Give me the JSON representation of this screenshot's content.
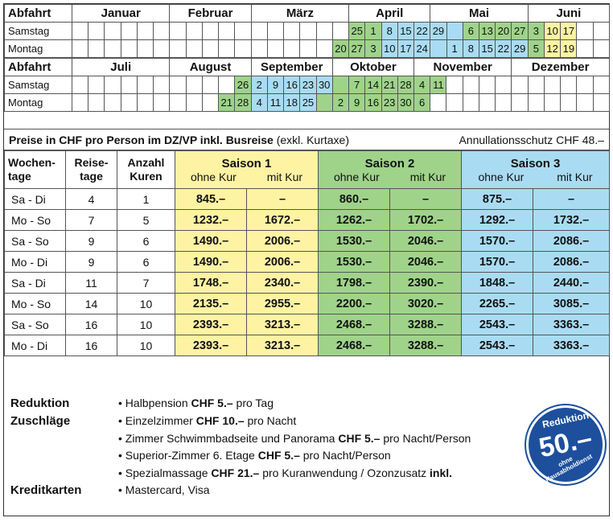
{
  "calendar1": {
    "head": "Abfahrt",
    "months": [
      "Januar",
      "Februar",
      "März",
      "April",
      "Mai",
      "Juni"
    ],
    "rows": [
      {
        "label": "Samstag",
        "cells": [
          "",
          "",
          "",
          "",
          "",
          "",
          "",
          "",
          "",
          "",
          "",
          "",
          "",
          "",
          "",
          "",
          "",
          "25",
          "1",
          "8",
          "15",
          "22",
          "29",
          "",
          "6",
          "13",
          "20",
          "27",
          "3",
          "10",
          "17",
          "",
          ""
        ]
      },
      {
        "label": "Montag",
        "cells": [
          "",
          "",
          "",
          "",
          "",
          "",
          "",
          "",
          "",
          "",
          "",
          "",
          "",
          "",
          "",
          "",
          "20",
          "27",
          "3",
          "10",
          "17",
          "24",
          "",
          "1",
          "8",
          "15",
          "22",
          "29",
          "5",
          "12",
          "19",
          "",
          ""
        ]
      }
    ]
  },
  "calendar2": {
    "head": "Abfahrt",
    "months": [
      "Juli",
      "August",
      "September",
      "Oktober",
      "November",
      "Dezember"
    ],
    "rows": [
      {
        "label": "Samstag",
        "cells": [
          "",
          "",
          "",
          "",
          "",
          "",
          "",
          "",
          "",
          "",
          "26",
          "2",
          "9",
          "16",
          "23",
          "30",
          "",
          "7",
          "14",
          "21",
          "28",
          "4",
          "11",
          "",
          "",
          "",
          "",
          "",
          "",
          "",
          "",
          "",
          ""
        ]
      },
      {
        "label": "Montag",
        "cells": [
          "",
          "",
          "",
          "",
          "",
          "",
          "",
          "",
          "",
          "21",
          "28",
          "4",
          "11",
          "18",
          "25",
          "",
          "2",
          "9",
          "16",
          "23",
          "30",
          "6",
          "",
          "",
          "",
          "",
          "",
          "",
          "",
          "",
          "",
          "",
          ""
        ]
      }
    ]
  },
  "price_title": {
    "bold": "Preise in CHF pro Person im DZ/VP inkl. Busreise",
    "normal": " (exkl. Kurtaxe)",
    "right": "Annullationsschutz CHF 48.–"
  },
  "price_header": {
    "col1": [
      "Wochen-",
      "tage"
    ],
    "col2": [
      "Reise-",
      "tage"
    ],
    "col3": [
      "Anzahl",
      "Kuren"
    ],
    "seasons": [
      "Saison 1",
      "Saison 2",
      "Saison 3"
    ],
    "sub_without": "ohne Kur",
    "sub_with": "mit Kur"
  },
  "price_rows": [
    [
      "Sa - Di",
      "4",
      "1",
      "845.–",
      "–",
      "860.–",
      "–",
      "875.–",
      "–"
    ],
    [
      "Mo - So",
      "7",
      "5",
      "1232.–",
      "1672.–",
      "1262.–",
      "1702.–",
      "1292.–",
      "1732.–"
    ],
    [
      "Sa - So",
      "9",
      "6",
      "1490.–",
      "2006.–",
      "1530.–",
      "2046.–",
      "1570.–",
      "2086.–"
    ],
    [
      "Mo - Di",
      "9",
      "6",
      "1490.–",
      "2006.–",
      "1530.–",
      "2046.–",
      "1570.–",
      "2086.–"
    ],
    [
      "Sa - Di",
      "11",
      "7",
      "1748.–",
      "2340.–",
      "1798.–",
      "2390.–",
      "1848.–",
      "2440.–"
    ],
    [
      "Mo - So",
      "14",
      "10",
      "2135.–",
      "2955.–",
      "2200.–",
      "3020.–",
      "2265.–",
      "3085.–"
    ],
    [
      "Sa - So",
      "16",
      "10",
      "2393.–",
      "3213.–",
      "2468.–",
      "3288.–",
      "2543.–",
      "3363.–"
    ],
    [
      "Mo - Di",
      "16",
      "10",
      "2393.–",
      "3213.–",
      "2468.–",
      "3288.–",
      "2543.–",
      "3363.–"
    ]
  ],
  "notes": {
    "reduktion_label": "Reduktion",
    "reduktion_items": [
      [
        "• Halbpension ",
        "CHF 5.–",
        " pro Tag"
      ]
    ],
    "zuschlaege_label": "Zuschläge",
    "zuschlaege_items": [
      [
        "• Einzelzimmer ",
        "CHF 10.–",
        " pro Nacht"
      ],
      [
        "• Zimmer Schwimmbadseite und Panorama ",
        "CHF 5.–",
        " pro Nacht/Person"
      ],
      [
        "• Superior-Zimmer 6. Etage ",
        "CHF 5.–",
        " pro Nacht/Person"
      ],
      [
        "• Spezialmassage ",
        "CHF 21.–",
        " pro Kuranwendung / Ozonzusatz ",
        "inkl."
      ]
    ],
    "kreditkarten_label": "Kreditkarten",
    "kreditkarten_items": [
      [
        "• Mastercard, Visa"
      ]
    ]
  },
  "badge": {
    "top": "Reduktion",
    "amount": "50.–",
    "bottom": "ohne Hausabholdienst"
  },
  "colors": {
    "saison1": "#fdf3a3",
    "saison2": "#9fd38a",
    "saison3": "#a9dcf2",
    "badge": "#1d4f9c"
  }
}
